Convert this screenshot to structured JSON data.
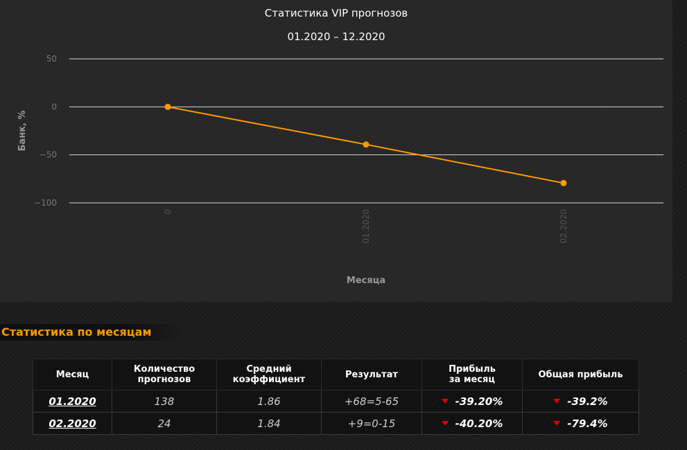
{
  "chart_data": {
    "type": "line",
    "title": "Статистика VIP прогнозов",
    "subtitle": "01.2020 – 12.2020",
    "xlabel": "Месяца",
    "ylabel": "Банк, %",
    "categories": [
      "0",
      "01.2020",
      "02.2020"
    ],
    "series": [
      {
        "values": [
          0,
          -39.2,
          -79.4
        ],
        "color": "#ff9900"
      }
    ],
    "ylim": [
      -100,
      50
    ],
    "yticks": [
      {
        "value": 50,
        "label": "50"
      },
      {
        "value": 0,
        "label": "0"
      },
      {
        "value": -50,
        "label": "−50"
      },
      {
        "value": -100,
        "label": "−100"
      }
    ],
    "grid": true
  },
  "stats": {
    "title": "Статистика по месяцам",
    "headers": {
      "month": "Месяц",
      "count_1": "Количество",
      "count_2": "прогнозов",
      "coef_1": "Средний",
      "coef_2": "коэффициент",
      "result": "Результат",
      "profit_1": "Прибыль",
      "profit_2": "за месяц",
      "total": "Общая прибыль"
    },
    "rows": [
      {
        "month": "01.2020",
        "count": "138",
        "coef": "1.86",
        "result": "+68=5-65",
        "profit": "-39.20%",
        "total": "-39.2%"
      },
      {
        "month": "02.2020",
        "count": "24",
        "coef": "1.84",
        "result": "+9=0-15",
        "profit": "-40.20%",
        "total": "-79.4%"
      }
    ]
  },
  "colors": {
    "accent": "#ff9900",
    "negative_arrow": "#e00000"
  }
}
